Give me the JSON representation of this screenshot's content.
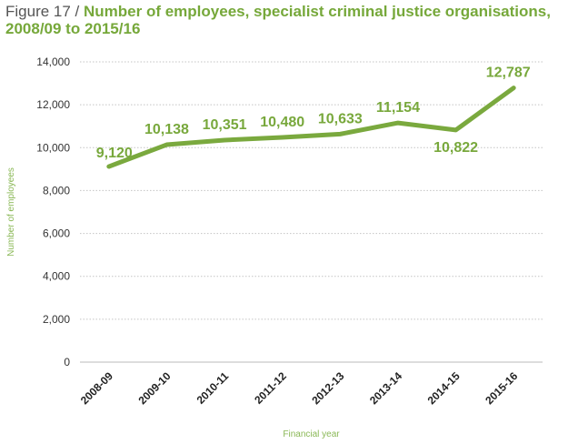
{
  "title_prefix": "Figure 17 / ",
  "title_main": "Number of employees, specialist criminal justice organisations, 2008/09 to 2015/16",
  "chart_data": {
    "type": "line",
    "categories": [
      "2008-09",
      "2009-10",
      "2010-11",
      "2011-12",
      "2012-13",
      "2013-14",
      "2014-15",
      "2015-16"
    ],
    "values": [
      9120,
      10138,
      10351,
      10480,
      10633,
      11154,
      10822,
      12787
    ],
    "data_labels": [
      "9,120",
      "10,138",
      "10,351",
      "10,480",
      "10,633",
      "11,154",
      "10,822",
      "12,787"
    ],
    "y_ticks": [
      0,
      2000,
      4000,
      6000,
      8000,
      10000,
      12000,
      14000
    ],
    "y_tick_labels": [
      "0",
      "2,000",
      "4,000",
      "6,000",
      "8,000",
      "10,000",
      "12,000",
      "14,000"
    ],
    "ylim": [
      0,
      14000
    ],
    "xlabel": "Financial year",
    "ylabel": "Number of employees",
    "grid": "horizontal dotted",
    "line_color": "#7aa93e"
  }
}
